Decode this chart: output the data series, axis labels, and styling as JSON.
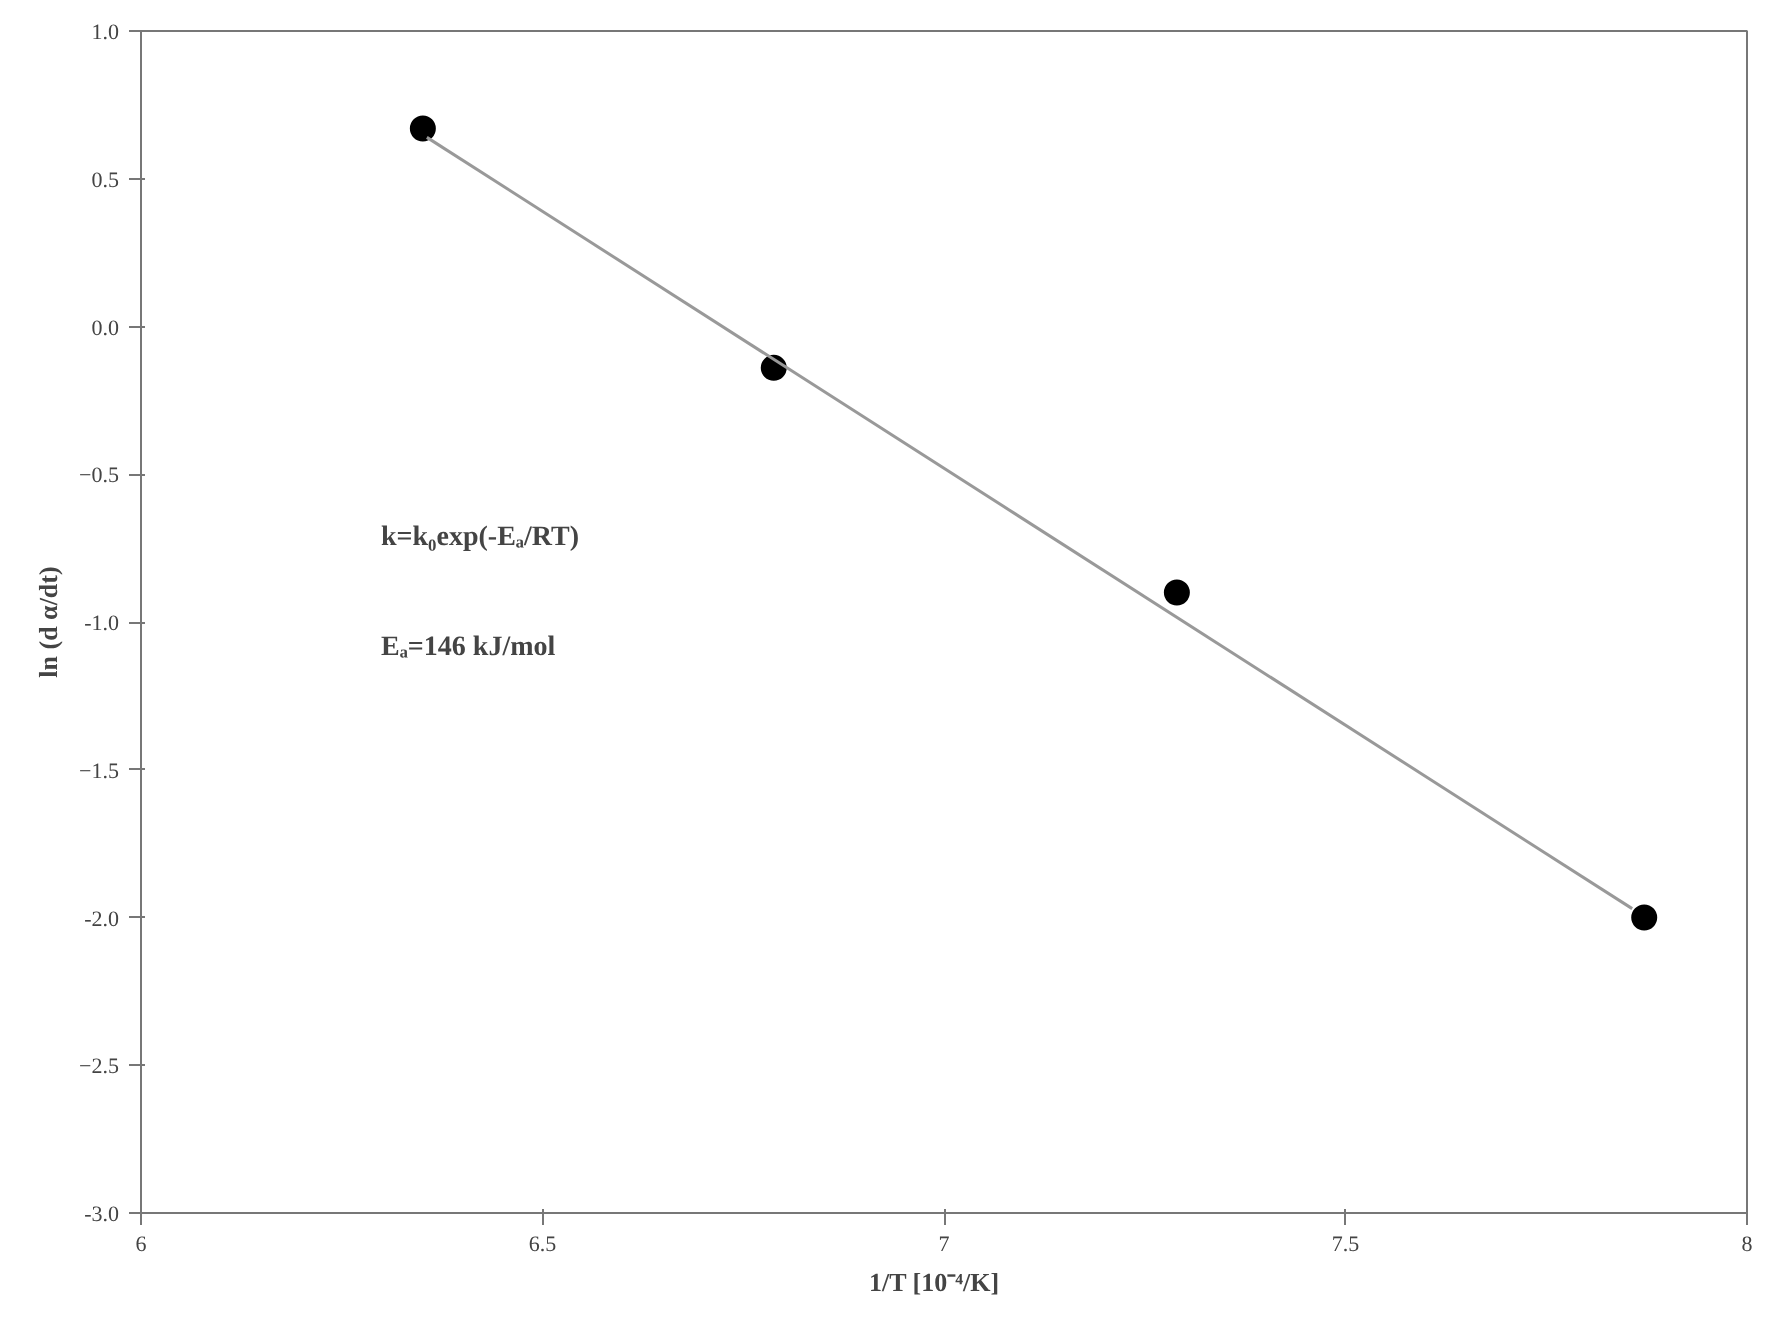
{
  "chart_data": {
    "type": "scatter",
    "xlabel": "1/T    [10⁻⁴/K]",
    "ylabel": "ln (d α/dt)",
    "x": [
      6.351,
      6.788,
      7.29,
      7.872
    ],
    "series": [
      {
        "color": "#000000",
        "marker": "circle",
        "values": [
          0.67,
          -0.14,
          -0.9,
          -2.0
        ]
      },
      {
        "type": "line",
        "marker": "none",
        "color": "#999999",
        "x": [
          6.356,
          7.857
        ],
        "values": [
          0.64,
          -1.97
        ]
      }
    ],
    "xlim": [
      6,
      8
    ],
    "xticks": [
      6,
      6.5,
      7,
      7.5,
      8
    ],
    "ylim": [
      -3.0,
      1.0
    ],
    "yticks": [
      {
        "value": -3.0,
        "label": "-3.0"
      },
      -2.5,
      {
        "value": -2.0,
        "label": "-2.0"
      },
      -1.5,
      {
        "value": -1.0,
        "label": "-1.0"
      },
      -0.5,
      {
        "value": 0.0,
        "label": "0.0"
      },
      0.5,
      {
        "value": 1.0,
        "label": "1.0"
      }
    ],
    "annotations": [
      "k=k₀exp(-Eₐ/RT)",
      "Eₐ=146  kJ/mol"
    ],
    "grid": false
  }
}
